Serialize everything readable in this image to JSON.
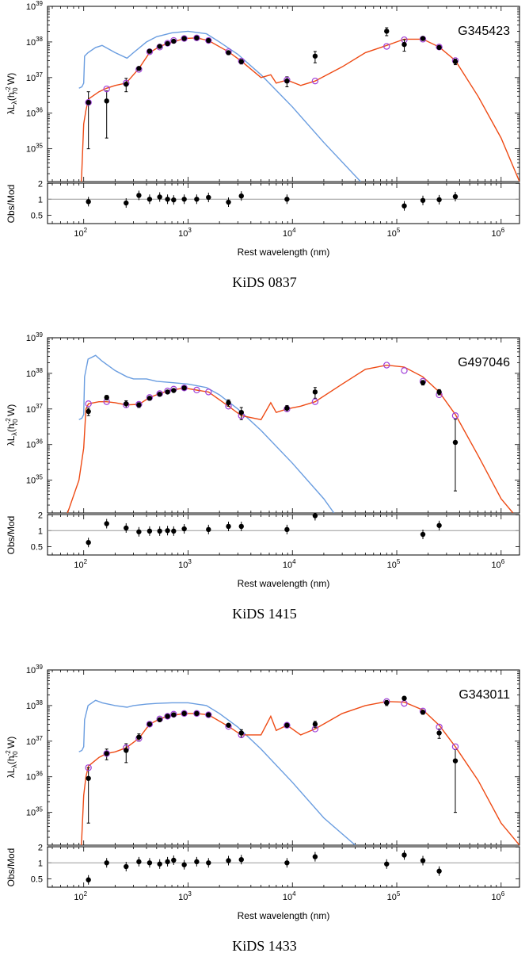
{
  "common": {
    "ylabel_main": "λL",
    "ylabel_sub": "λ",
    "ylabel_paren": "(h",
    "ylabel_exp": "-2",
    "ylabel_sub2": "70",
    "ylabel_unit": " W)",
    "ylabel_resid": "Obs/Mod",
    "xlabel": "Rest wavelength (nm)",
    "x_tick_base": "10",
    "x_tick_exps": [
      "2",
      "3",
      "4",
      "5",
      "6"
    ],
    "y_tick_base": "10",
    "y_tick_exps": [
      "35",
      "36",
      "37",
      "38",
      "39"
    ],
    "resid_ticks": [
      "2",
      "1",
      "0.5"
    ],
    "colors": {
      "stellar_unattenuated": "#6a9de0",
      "total_model": "#ee4a14",
      "model_photometry": "#a040d8",
      "observed": "#000000",
      "unity_line": "#999999"
    }
  },
  "chart_data": [
    {
      "type": "scatter",
      "galaxy": "G345423",
      "caption": "KiDS 0837",
      "xlim": [
        45,
        1500000
      ],
      "ylim": [
        1.2e+34,
        1e+39
      ],
      "xscale": "log",
      "yscale": "log",
      "xlabel": "Rest wavelength (nm)",
      "ylabel": "λLλ(h70^-2 W)",
      "series": [
        {
          "name": "observed",
          "x": [
            111,
            166,
            255,
            338,
            428,
            535,
            636,
            728,
            919,
            1210,
            1570,
            2440,
            3240,
            8870,
            16500,
            80000,
            118000,
            178000,
            255000,
            364000
          ],
          "y": [
            2e+36,
            2.2e+36,
            6.5e+36,
            1.8e+37,
            5.5e+37,
            7.5e+37,
            9e+37,
            1.05e+38,
            1.25e+38,
            1.3e+38,
            1.1e+38,
            5e+37,
            2.8e+37,
            8e+36,
            4e+37,
            2e+38,
            8.5e+37,
            1.25e+38,
            7e+37,
            2.8e+37
          ],
          "yerr_lo": [
            1.9e+36,
            2e+36,
            2.5e+36,
            2e+36,
            6e+36,
            6e+36,
            6e+36,
            6e+36,
            6e+36,
            6e+36,
            6e+36,
            6e+36,
            4e+36,
            2.5e+36,
            1.4e+37,
            5e+37,
            3e+37,
            1e+37,
            8e+36,
            5e+36
          ],
          "yerr_hi": [
            2e+36,
            2e+36,
            3e+36,
            2e+36,
            6e+36,
            6e+36,
            6e+36,
            6e+36,
            6e+36,
            6e+36,
            6e+36,
            6e+36,
            4e+36,
            2.5e+36,
            1.4e+37,
            5e+37,
            3e+37,
            1e+37,
            8e+36,
            5e+36
          ]
        },
        {
          "name": "model",
          "x": [
            111,
            166,
            255,
            338,
            428,
            535,
            636,
            728,
            919,
            1210,
            1570,
            2440,
            3240,
            8870,
            16500,
            80000,
            118000,
            178000,
            255000,
            364000
          ],
          "y": [
            2e+36,
            4.8e+36,
            7e+36,
            1.7e+37,
            5.3e+37,
            7.2e+37,
            9.2e+37,
            1.1e+38,
            1.25e+38,
            1.3e+38,
            1.1e+38,
            5.3e+37,
            2.9e+37,
            8.5e+36,
            8e+36,
            7.5e+37,
            1.15e+38,
            1.2e+38,
            7.2e+37,
            3e+37
          ]
        }
      ],
      "residuals": {
        "x": [
          111,
          255,
          338,
          428,
          535,
          636,
          728,
          919,
          1210,
          1570,
          2440,
          3240,
          8870,
          118000,
          178000,
          255000,
          364000
        ],
        "y": [
          0.9,
          0.85,
          1.18,
          1.0,
          1.1,
          1.0,
          0.97,
          1.0,
          1.0,
          1.08,
          0.88,
          1.15,
          1.0,
          0.75,
          0.95,
          0.98,
          1.12
        ]
      },
      "curves": {
        "stellar_unattenuated": {
          "x": [
            90,
            96,
            100,
            102,
            110,
            130,
            150,
            200,
            260,
            300,
            400,
            500,
            700,
            1000,
            1500,
            2000,
            3000,
            5000,
            10000,
            20000,
            45000
          ],
          "y": [
            5e+36,
            5.5e+36,
            7e+36,
            4e+37,
            5e+37,
            7e+37,
            8e+37,
            5e+37,
            3.5e+37,
            5e+37,
            1e+38,
            1.4e+38,
            1.8e+38,
            2e+38,
            1.7e+38,
            1e+38,
            4.5e+37,
            1.2e+37,
            1.5e+36,
            1.5e+35,
            1.2e+34
          ]
        },
        "total_model": {
          "x": [
            95,
            100,
            105,
            111,
            140,
            166,
            200,
            255,
            338,
            428,
            536,
            636,
            919,
            1210,
            1570,
            2440,
            3240,
            5000,
            6200,
            7000,
            8870,
            12000,
            16500,
            30000,
            50000,
            80000,
            118000,
            178000,
            255000,
            364000,
            600000,
            1000000,
            1500000
          ],
          "y": [
            1.2e+34,
            5e+35,
            1.2e+36,
            2.5e+36,
            4e+36,
            5e+36,
            6e+36,
            7e+36,
            1.8e+37,
            5e+37,
            7.5e+37,
            9e+37,
            1.25e+38,
            1.3e+38,
            1.1e+38,
            5.3e+37,
            2.9e+37,
            1e+37,
            1.2e+37,
            7e+36,
            8.5e+36,
            6e+36,
            8e+36,
            2e+37,
            5e+37,
            8e+37,
            1.2e+38,
            1.2e+38,
            7.2e+37,
            3e+37,
            3e+36,
            2e+35,
            1.2e+34
          ]
        }
      }
    },
    {
      "type": "scatter",
      "galaxy": "G497046",
      "caption": "KiDS 1415",
      "xlim": [
        45,
        1500000
      ],
      "ylim": [
        1.2e+34,
        1e+39
      ],
      "xscale": "log",
      "yscale": "log",
      "xlabel": "Rest wavelength (nm)",
      "ylabel": "λLλ(h70^-2 W)",
      "series": [
        {
          "name": "observed",
          "x": [
            111,
            166,
            255,
            338,
            428,
            535,
            636,
            728,
            919,
            2440,
            3240,
            8870,
            16500,
            178000,
            255000,
            364000
          ],
          "y": [
            8.5e+36,
            2.1e+37,
            1.4e+37,
            1.3e+37,
            2e+37,
            2.6e+37,
            3e+37,
            3.3e+37,
            3.9e+37,
            1.5e+37,
            8e+36,
            1.05e+37,
            3e+37,
            5.5e+37,
            3e+37,
            1.15e+36
          ],
          "yerr_lo": [
            2e+36,
            3e+36,
            3e+36,
            2e+36,
            2e+36,
            2e+36,
            2e+36,
            2e+36,
            3e+36,
            3e+36,
            3e+36,
            2e+36,
            1e+37,
            8e+36,
            5e+36,
            1.1e+36
          ],
          "yerr_hi": [
            2e+36,
            3e+36,
            3e+36,
            2e+36,
            2e+36,
            2e+36,
            2e+36,
            2e+36,
            3e+36,
            3e+36,
            3e+36,
            2e+36,
            1e+37,
            8e+36,
            5e+36,
            4e+36
          ]
        },
        {
          "name": "model",
          "x": [
            111,
            166,
            255,
            338,
            428,
            535,
            636,
            728,
            919,
            1210,
            1570,
            2440,
            3240,
            8870,
            16500,
            80000,
            118000,
            178000,
            255000,
            364000
          ],
          "y": [
            1.4e+37,
            1.6e+37,
            1.3e+37,
            1.35e+37,
            2.1e+37,
            2.7e+37,
            3.2e+37,
            3.6e+37,
            3.9e+37,
            3.4e+37,
            3e+37,
            1.2e+37,
            6.5e+36,
            1e+37,
            1.6e+37,
            1.7e+38,
            1.2e+38,
            6e+37,
            2.5e+37,
            6.5e+36
          ]
        }
      ],
      "residuals": {
        "x": [
          111,
          166,
          255,
          338,
          428,
          535,
          636,
          728,
          919,
          1570,
          2440,
          3240,
          8870,
          16500,
          178000,
          255000
        ],
        "y": [
          0.6,
          1.35,
          1.12,
          0.95,
          0.98,
          0.98,
          1.0,
          0.98,
          1.08,
          1.05,
          1.2,
          1.2,
          1.05,
          1.9,
          0.85,
          1.25
        ]
      },
      "curves": {
        "stellar_unattenuated": {
          "x": [
            90,
            96,
            100,
            102,
            110,
            130,
            150,
            200,
            260,
            300,
            400,
            500,
            700,
            1000,
            1500,
            2000,
            3000,
            5000,
            10000,
            20000,
            25000
          ],
          "y": [
            5e+36,
            5.5e+36,
            7e+36,
            8e+37,
            2.5e+38,
            3.2e+38,
            2.2e+38,
            1.2e+38,
            8e+37,
            7e+37,
            7e+37,
            6e+37,
            5.5e+37,
            5e+37,
            4e+37,
            2.5e+37,
            1e+37,
            2.5e+36,
            3e+35,
            3e+34,
            1.2e+34
          ]
        },
        "total_model": {
          "x": [
            70,
            90,
            100,
            105,
            111,
            140,
            166,
            200,
            255,
            338,
            428,
            536,
            636,
            919,
            1210,
            1570,
            2440,
            3240,
            5000,
            6200,
            7000,
            8870,
            12000,
            16500,
            30000,
            50000,
            80000,
            118000,
            178000,
            255000,
            364000,
            600000,
            1000000,
            1300000
          ],
          "y": [
            1.2e+34,
            1e+35,
            8e+35,
            1e+37,
            1.4e+37,
            1.6e+37,
            1.6e+37,
            1.5e+37,
            1.3e+37,
            1.35e+37,
            2.1e+37,
            2.7e+37,
            3.2e+37,
            3.9e+37,
            3.4e+37,
            3e+37,
            1.2e+37,
            6.5e+36,
            5e+36,
            1.5e+37,
            8e+36,
            1e+37,
            1.2e+37,
            1.6e+37,
            5e+37,
            1.3e+38,
            1.7e+38,
            1.5e+38,
            8e+37,
            3e+37,
            7e+36,
            5e+35,
            3e+34,
            1.2e+34
          ]
        }
      }
    },
    {
      "type": "scatter",
      "galaxy": "G343011",
      "caption": "KiDS 1433",
      "xlim": [
        45,
        1500000
      ],
      "ylim": [
        1.2e+34,
        1e+39
      ],
      "xscale": "log",
      "yscale": "log",
      "xlabel": "Rest wavelength (nm)",
      "ylabel": "λLλ(h70^-2 W)",
      "series": [
        {
          "name": "observed",
          "x": [
            111,
            166,
            255,
            338,
            428,
            535,
            636,
            728,
            919,
            1210,
            1570,
            2440,
            3240,
            8870,
            16500,
            80000,
            118000,
            178000,
            255000,
            364000
          ],
          "y": [
            9e+35,
            4.5e+36,
            5.5e+36,
            1.3e+37,
            3e+37,
            4e+37,
            5e+37,
            5.5e+37,
            6e+37,
            6e+37,
            5.5e+37,
            2.8e+37,
            1.7e+37,
            2.8e+37,
            3e+37,
            1.2e+38,
            1.6e+38,
            6.5e+37,
            1.7e+37,
            2.8e+36
          ],
          "yerr_lo": [
            8.5e+35,
            1.5e+36,
            3e+36,
            3e+36,
            4e+36,
            4e+36,
            4e+36,
            4e+36,
            4e+36,
            4e+36,
            4e+36,
            3e+36,
            4e+36,
            3e+36,
            6e+36,
            2e+37,
            2e+37,
            8e+36,
            5e+36,
            2.7e+36
          ],
          "yerr_hi": [
            9e+35,
            1.5e+36,
            3e+36,
            3e+36,
            4e+36,
            4e+36,
            4e+36,
            4e+36,
            4e+36,
            4e+36,
            4e+36,
            3e+36,
            4e+36,
            3e+36,
            6e+36,
            2e+37,
            2e+37,
            8e+36,
            5e+36,
            3e+36
          ]
        },
        {
          "name": "model",
          "x": [
            111,
            166,
            255,
            338,
            428,
            535,
            636,
            728,
            919,
            1210,
            1570,
            2440,
            3240,
            8870,
            16500,
            80000,
            118000,
            178000,
            255000,
            364000
          ],
          "y": [
            1.8e+36,
            4.5e+36,
            6.5e+36,
            1.2e+37,
            3e+37,
            4.2e+37,
            5e+37,
            5.7e+37,
            6e+37,
            6e+37,
            5.5e+37,
            2.6e+37,
            1.5e+37,
            2.8e+37,
            2.2e+37,
            1.3e+38,
            1.15e+38,
            7e+37,
            2.5e+37,
            7e+36
          ]
        }
      ],
      "residuals": {
        "x": [
          111,
          166,
          255,
          338,
          428,
          535,
          636,
          728,
          919,
          1210,
          1570,
          2440,
          3240,
          8870,
          16500,
          80000,
          118000,
          178000,
          255000
        ],
        "y": [
          0.48,
          1.0,
          0.85,
          1.05,
          1.0,
          0.95,
          1.05,
          1.12,
          0.92,
          1.05,
          1.0,
          1.1,
          1.15,
          1.0,
          1.3,
          0.95,
          1.4,
          1.1,
          0.7
        ]
      },
      "curves": {
        "stellar_unattenuated": {
          "x": [
            90,
            96,
            100,
            102,
            110,
            130,
            150,
            200,
            260,
            300,
            400,
            500,
            700,
            1000,
            1500,
            2000,
            3000,
            5000,
            10000,
            20000,
            40000
          ],
          "y": [
            5e+36,
            5.5e+36,
            7e+36,
            4e+37,
            1e+38,
            1.4e+38,
            1.2e+38,
            1e+38,
            9e+37,
            1e+38,
            1.1e+38,
            1.15e+38,
            1.2e+38,
            1.2e+38,
            1e+38,
            6e+37,
            2.5e+37,
            6e+36,
            7e+35,
            7e+34,
            1.2e+34
          ]
        },
        "total_model": {
          "x": [
            95,
            100,
            105,
            111,
            140,
            166,
            200,
            255,
            338,
            428,
            536,
            636,
            919,
            1210,
            1570,
            2440,
            3240,
            5000,
            6200,
            7000,
            8870,
            12000,
            16500,
            30000,
            50000,
            80000,
            118000,
            178000,
            255000,
            364000,
            600000,
            1000000,
            1500000
          ],
          "y": [
            1.2e+34,
            3e+35,
            1e+36,
            2e+36,
            3.5e+36,
            4.5e+36,
            5e+36,
            6.5e+36,
            1.2e+37,
            3e+37,
            4.2e+37,
            5e+37,
            6e+37,
            6e+37,
            5.5e+37,
            2.6e+37,
            1.5e+37,
            1.5e+37,
            5e+37,
            2e+37,
            2.8e+37,
            1.5e+37,
            2.2e+37,
            6e+37,
            1e+38,
            1.3e+38,
            1.25e+38,
            7.5e+37,
            2.8e+37,
            7e+36,
            8e+35,
            5e+34,
            1.2e+34
          ]
        }
      }
    }
  ]
}
